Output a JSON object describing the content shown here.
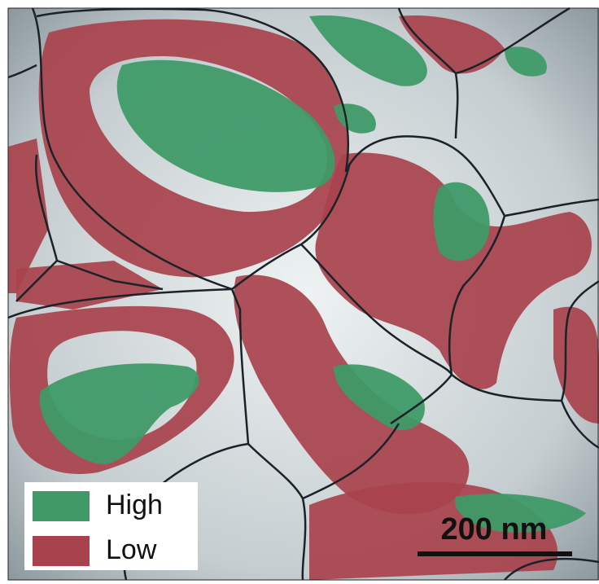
{
  "legend": {
    "items": [
      {
        "label": "High",
        "color": "#3f9a68"
      },
      {
        "label": "Low",
        "color": "#a8424c"
      }
    ]
  },
  "scale_bar": {
    "label": "200 nm"
  }
}
